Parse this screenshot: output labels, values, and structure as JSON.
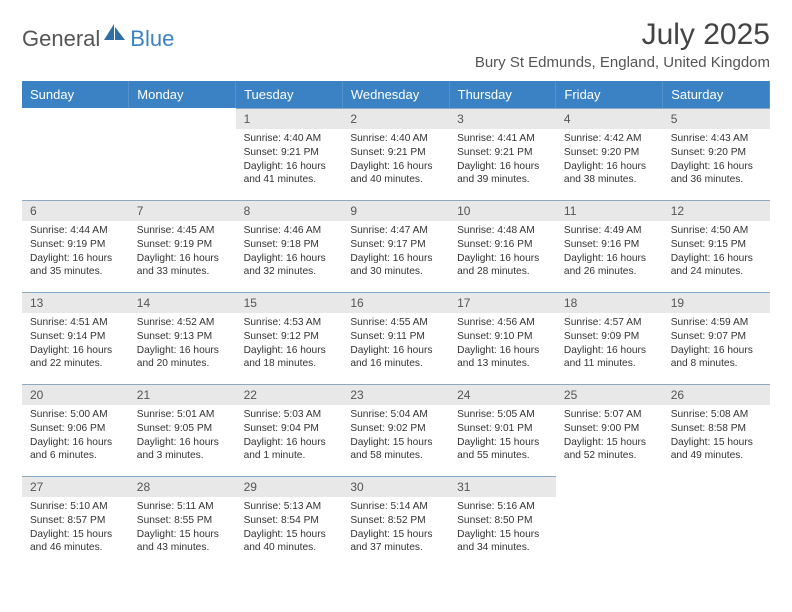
{
  "logo": {
    "part1": "General",
    "part2": "Blue"
  },
  "title": "July 2025",
  "subtitle": "Bury St Edmunds, England, United Kingdom",
  "colors": {
    "header_bg": "#3b82c4",
    "header_fg": "#ffffff",
    "daynum_bg": "#e8e8e8",
    "daynum_border": "#8aa9c7",
    "text": "#333333"
  },
  "dayNames": [
    "Sunday",
    "Monday",
    "Tuesday",
    "Wednesday",
    "Thursday",
    "Friday",
    "Saturday"
  ],
  "weeks": [
    [
      {
        "empty": true
      },
      {
        "empty": true
      },
      {
        "n": "1",
        "sunrise": "4:40 AM",
        "sunset": "9:21 PM",
        "daylight": "16 hours and 41 minutes."
      },
      {
        "n": "2",
        "sunrise": "4:40 AM",
        "sunset": "9:21 PM",
        "daylight": "16 hours and 40 minutes."
      },
      {
        "n": "3",
        "sunrise": "4:41 AM",
        "sunset": "9:21 PM",
        "daylight": "16 hours and 39 minutes."
      },
      {
        "n": "4",
        "sunrise": "4:42 AM",
        "sunset": "9:20 PM",
        "daylight": "16 hours and 38 minutes."
      },
      {
        "n": "5",
        "sunrise": "4:43 AM",
        "sunset": "9:20 PM",
        "daylight": "16 hours and 36 minutes."
      }
    ],
    [
      {
        "n": "6",
        "sunrise": "4:44 AM",
        "sunset": "9:19 PM",
        "daylight": "16 hours and 35 minutes."
      },
      {
        "n": "7",
        "sunrise": "4:45 AM",
        "sunset": "9:19 PM",
        "daylight": "16 hours and 33 minutes."
      },
      {
        "n": "8",
        "sunrise": "4:46 AM",
        "sunset": "9:18 PM",
        "daylight": "16 hours and 32 minutes."
      },
      {
        "n": "9",
        "sunrise": "4:47 AM",
        "sunset": "9:17 PM",
        "daylight": "16 hours and 30 minutes."
      },
      {
        "n": "10",
        "sunrise": "4:48 AM",
        "sunset": "9:16 PM",
        "daylight": "16 hours and 28 minutes."
      },
      {
        "n": "11",
        "sunrise": "4:49 AM",
        "sunset": "9:16 PM",
        "daylight": "16 hours and 26 minutes."
      },
      {
        "n": "12",
        "sunrise": "4:50 AM",
        "sunset": "9:15 PM",
        "daylight": "16 hours and 24 minutes."
      }
    ],
    [
      {
        "n": "13",
        "sunrise": "4:51 AM",
        "sunset": "9:14 PM",
        "daylight": "16 hours and 22 minutes."
      },
      {
        "n": "14",
        "sunrise": "4:52 AM",
        "sunset": "9:13 PM",
        "daylight": "16 hours and 20 minutes."
      },
      {
        "n": "15",
        "sunrise": "4:53 AM",
        "sunset": "9:12 PM",
        "daylight": "16 hours and 18 minutes."
      },
      {
        "n": "16",
        "sunrise": "4:55 AM",
        "sunset": "9:11 PM",
        "daylight": "16 hours and 16 minutes."
      },
      {
        "n": "17",
        "sunrise": "4:56 AM",
        "sunset": "9:10 PM",
        "daylight": "16 hours and 13 minutes."
      },
      {
        "n": "18",
        "sunrise": "4:57 AM",
        "sunset": "9:09 PM",
        "daylight": "16 hours and 11 minutes."
      },
      {
        "n": "19",
        "sunrise": "4:59 AM",
        "sunset": "9:07 PM",
        "daylight": "16 hours and 8 minutes."
      }
    ],
    [
      {
        "n": "20",
        "sunrise": "5:00 AM",
        "sunset": "9:06 PM",
        "daylight": "16 hours and 6 minutes."
      },
      {
        "n": "21",
        "sunrise": "5:01 AM",
        "sunset": "9:05 PM",
        "daylight": "16 hours and 3 minutes."
      },
      {
        "n": "22",
        "sunrise": "5:03 AM",
        "sunset": "9:04 PM",
        "daylight": "16 hours and 1 minute."
      },
      {
        "n": "23",
        "sunrise": "5:04 AM",
        "sunset": "9:02 PM",
        "daylight": "15 hours and 58 minutes."
      },
      {
        "n": "24",
        "sunrise": "5:05 AM",
        "sunset": "9:01 PM",
        "daylight": "15 hours and 55 minutes."
      },
      {
        "n": "25",
        "sunrise": "5:07 AM",
        "sunset": "9:00 PM",
        "daylight": "15 hours and 52 minutes."
      },
      {
        "n": "26",
        "sunrise": "5:08 AM",
        "sunset": "8:58 PM",
        "daylight": "15 hours and 49 minutes."
      }
    ],
    [
      {
        "n": "27",
        "sunrise": "5:10 AM",
        "sunset": "8:57 PM",
        "daylight": "15 hours and 46 minutes."
      },
      {
        "n": "28",
        "sunrise": "5:11 AM",
        "sunset": "8:55 PM",
        "daylight": "15 hours and 43 minutes."
      },
      {
        "n": "29",
        "sunrise": "5:13 AM",
        "sunset": "8:54 PM",
        "daylight": "15 hours and 40 minutes."
      },
      {
        "n": "30",
        "sunrise": "5:14 AM",
        "sunset": "8:52 PM",
        "daylight": "15 hours and 37 minutes."
      },
      {
        "n": "31",
        "sunrise": "5:16 AM",
        "sunset": "8:50 PM",
        "daylight": "15 hours and 34 minutes."
      },
      {
        "empty": true
      },
      {
        "empty": true
      }
    ]
  ],
  "labels": {
    "sunrise": "Sunrise: ",
    "sunset": "Sunset: ",
    "daylight": "Daylight: "
  }
}
